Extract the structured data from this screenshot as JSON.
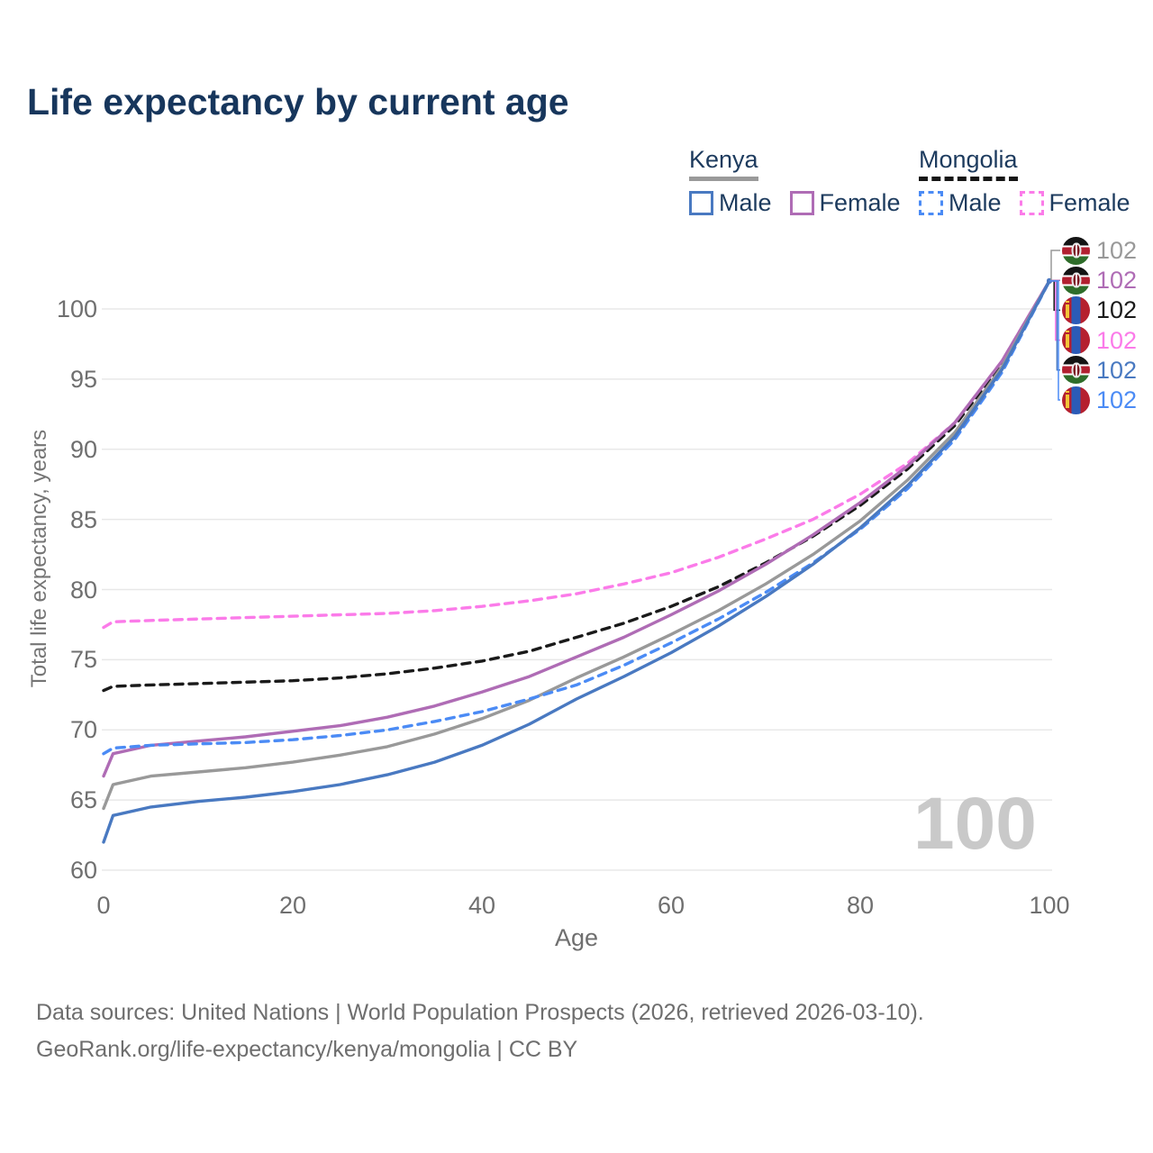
{
  "title": "Life expectancy by current age",
  "legend": {
    "groups": [
      {
        "country": "Kenya",
        "line_style": "solid",
        "underline_color": "#9a9a9a",
        "items": [
          {
            "label": "Male",
            "color": "#4979c1"
          },
          {
            "label": "Female",
            "color": "#af6cb5"
          }
        ]
      },
      {
        "country": "Mongolia",
        "line_style": "dashed",
        "underline_color": "#161616",
        "items": [
          {
            "label": "Male",
            "color": "#4b8bf5"
          },
          {
            "label": "Female",
            "color": "#fb7be9"
          }
        ]
      }
    ]
  },
  "axes": {
    "y_title": "Total life expectancy, years",
    "x_title": "Age",
    "y_ticks": [
      60,
      65,
      70,
      75,
      80,
      85,
      90,
      95,
      100
    ],
    "x_ticks": [
      0,
      20,
      40,
      60,
      80,
      100
    ]
  },
  "watermark": "100",
  "footer": {
    "line1": "Data sources: United Nations | World Population Prospects (2026, retrieved 2026-03-10).",
    "line2": "GeoRank.org/life-expectancy/kenya/mongolia | CC BY"
  },
  "chart_data": {
    "type": "line",
    "title": "Life expectancy by current age",
    "xlabel": "Age",
    "ylabel": "Total life expectancy, years",
    "xlim": [
      0,
      100
    ],
    "ylim": [
      60,
      103
    ],
    "grid": "horizontal",
    "gridline_color": "#e8e8e8",
    "legend_position": "top-right",
    "x": [
      0,
      1,
      5,
      10,
      15,
      20,
      25,
      30,
      35,
      40,
      45,
      50,
      55,
      60,
      65,
      70,
      75,
      80,
      85,
      90,
      95,
      100
    ],
    "series": [
      {
        "name": "Mongolia Female",
        "country": "Mongolia",
        "sex": "Female",
        "color": "#fb7be9",
        "dash": "dashed",
        "values": [
          77.3,
          77.7,
          77.8,
          77.9,
          78.0,
          78.1,
          78.2,
          78.3,
          78.5,
          78.8,
          79.2,
          79.7,
          80.4,
          81.2,
          82.3,
          83.6,
          85.0,
          86.8,
          89.0,
          91.9,
          96.3,
          102
        ]
      },
      {
        "name": "Mongolia Both sexes",
        "country": "Mongolia",
        "sex": "Both",
        "color": "#1a1a1a",
        "dash": "dashed",
        "values": [
          72.8,
          73.1,
          73.2,
          73.3,
          73.4,
          73.5,
          73.7,
          74.0,
          74.4,
          74.9,
          75.6,
          76.6,
          77.6,
          78.8,
          80.2,
          81.9,
          83.8,
          86.0,
          88.6,
          91.7,
          96.1,
          102
        ]
      },
      {
        "name": "Kenya Female",
        "country": "Kenya",
        "sex": "Female",
        "color": "#af6cb5",
        "dash": "solid",
        "values": [
          66.7,
          68.3,
          68.9,
          69.2,
          69.5,
          69.9,
          70.3,
          70.9,
          71.7,
          72.7,
          73.8,
          75.2,
          76.6,
          78.2,
          79.9,
          81.8,
          83.9,
          86.2,
          88.8,
          91.9,
          96.3,
          102
        ]
      },
      {
        "name": "Kenya Both sexes",
        "country": "Kenya",
        "sex": "Both",
        "color": "#999999",
        "dash": "solid",
        "values": [
          64.4,
          66.1,
          66.7,
          67.0,
          67.3,
          67.7,
          68.2,
          68.8,
          69.7,
          70.8,
          72.1,
          73.7,
          75.2,
          76.8,
          78.5,
          80.4,
          82.5,
          84.9,
          87.8,
          91.2,
          95.9,
          102
        ]
      },
      {
        "name": "Mongolia Male",
        "country": "Mongolia",
        "sex": "Male",
        "color": "#4b8bf5",
        "dash": "dashed",
        "values": [
          68.3,
          68.7,
          68.9,
          69.0,
          69.1,
          69.3,
          69.6,
          70.0,
          70.6,
          71.3,
          72.2,
          73.2,
          74.6,
          76.2,
          77.9,
          79.8,
          81.9,
          84.3,
          87.2,
          90.7,
          95.5,
          102
        ]
      },
      {
        "name": "Kenya Male",
        "country": "Kenya",
        "sex": "Male",
        "color": "#4979c1",
        "dash": "solid",
        "values": [
          62.0,
          63.9,
          64.5,
          64.9,
          65.2,
          65.6,
          66.1,
          66.8,
          67.7,
          68.9,
          70.4,
          72.2,
          73.8,
          75.5,
          77.4,
          79.5,
          81.8,
          84.4,
          87.4,
          90.9,
          95.7,
          102
        ]
      }
    ],
    "end_labels": [
      {
        "series": "Kenya Both sexes",
        "value": "102",
        "flag": "kenya",
        "color": "#999999"
      },
      {
        "series": "Kenya Female",
        "value": "102",
        "flag": "kenya",
        "color": "#af6cb5"
      },
      {
        "series": "Mongolia Both sexes",
        "value": "102",
        "flag": "mongolia",
        "color": "#1a1a1a"
      },
      {
        "series": "Mongolia Female",
        "value": "102",
        "flag": "mongolia",
        "color": "#fb7be9"
      },
      {
        "series": "Kenya Male",
        "value": "102",
        "flag": "kenya",
        "color": "#4979c1"
      },
      {
        "series": "Mongolia Male",
        "value": "102",
        "flag": "mongolia",
        "color": "#4b8bf5"
      }
    ]
  }
}
